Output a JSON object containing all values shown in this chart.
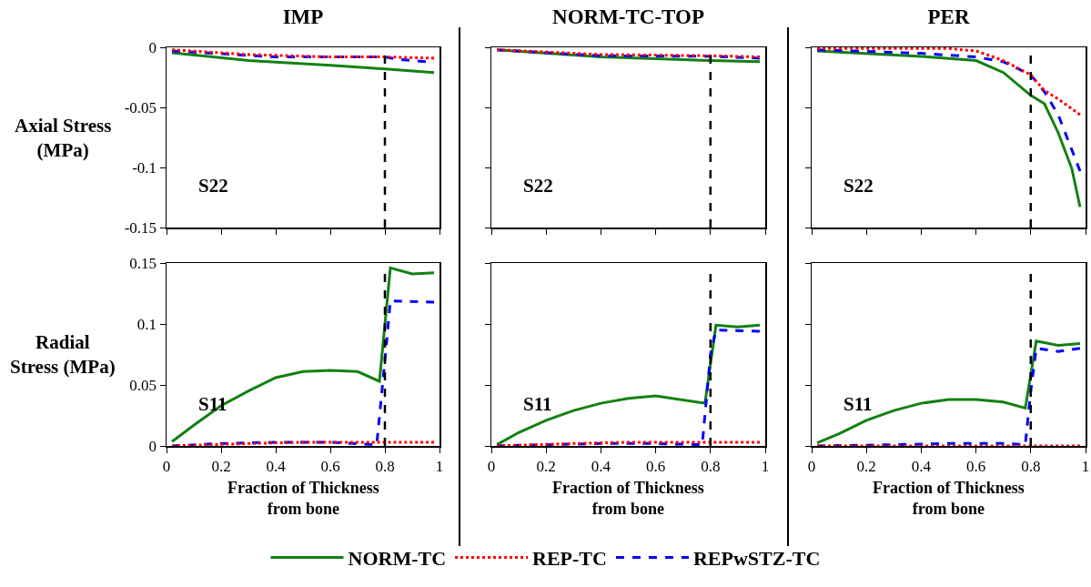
{
  "chart_data": [
    {
      "type": "line",
      "title": "IMP",
      "ylabel": "Axial Stress (MPa)",
      "annotations": [
        "S22"
      ],
      "xlim": [
        0,
        1
      ],
      "xticks": [
        0,
        0.2,
        0.4,
        0.6,
        0.8,
        1
      ],
      "ylim": [
        -0.15,
        0
      ],
      "yticks": [
        -0.15,
        -0.1,
        -0.05,
        0
      ],
      "tick_labels": "y",
      "ref_lines": [
        {
          "axis": "x",
          "value": 0.8,
          "color": "#000000",
          "line_style": "dashed"
        }
      ],
      "series": [
        {
          "color": "#138013",
          "line_style": "solid",
          "x": [
            0.02,
            0.3,
            0.6,
            0.8,
            0.98
          ],
          "values": [
            -0.0045,
            -0.011,
            -0.015,
            -0.018,
            -0.021
          ]
        },
        {
          "color": "#ff0000",
          "line_style": "dotted",
          "x": [
            0.02,
            0.3,
            0.6,
            0.8,
            0.98
          ],
          "values": [
            -0.002,
            -0.006,
            -0.008,
            -0.008,
            -0.009
          ]
        },
        {
          "color": "#0000ff",
          "line_style": "dashed",
          "x": [
            0.02,
            0.4,
            0.8,
            0.85,
            0.95
          ],
          "values": [
            -0.003,
            -0.008,
            -0.008,
            -0.01,
            -0.012
          ]
        }
      ]
    },
    {
      "type": "line",
      "title": "NORM-TC-TOP",
      "annotations": [
        "S22"
      ],
      "xlim": [
        0,
        1
      ],
      "xticks": [
        0,
        0.2,
        0.4,
        0.6,
        0.8,
        1
      ],
      "ylim": [
        -0.15,
        0
      ],
      "yticks": [
        -0.15,
        -0.1,
        -0.05,
        0
      ],
      "tick_labels": false,
      "ref_lines": [
        {
          "axis": "x",
          "value": 0.8,
          "color": "#000000",
          "line_style": "dashed"
        }
      ],
      "series": [
        {
          "color": "#138013",
          "line_style": "solid",
          "x": [
            0.02,
            0.4,
            0.8,
            0.98
          ],
          "values": [
            -0.002,
            -0.008,
            -0.011,
            -0.012
          ]
        },
        {
          "color": "#ff0000",
          "line_style": "dotted",
          "x": [
            0.02,
            0.4,
            0.8,
            0.98
          ],
          "values": [
            -0.002,
            -0.006,
            -0.007,
            -0.008
          ]
        },
        {
          "color": "#0000ff",
          "line_style": "dashed",
          "x": [
            0.02,
            0.4,
            0.8,
            0.98
          ],
          "values": [
            -0.002,
            -0.007,
            -0.0075,
            -0.009
          ]
        }
      ]
    },
    {
      "type": "line",
      "title": "PER",
      "annotations": [
        "S22"
      ],
      "xlim": [
        0,
        1
      ],
      "xticks": [
        0,
        0.2,
        0.4,
        0.6,
        0.8,
        1
      ],
      "ylim": [
        -0.15,
        0
      ],
      "yticks": [
        -0.15,
        -0.1,
        -0.05,
        0
      ],
      "tick_labels": false,
      "ref_lines": [
        {
          "axis": "x",
          "value": 0.8,
          "color": "#000000",
          "line_style": "dashed"
        }
      ],
      "series": [
        {
          "color": "#138013",
          "line_style": "solid",
          "x": [
            0.02,
            0.4,
            0.6,
            0.7,
            0.8,
            0.85,
            0.9,
            0.95,
            0.98
          ],
          "values": [
            -0.003,
            -0.0075,
            -0.011,
            -0.021,
            -0.04,
            -0.047,
            -0.071,
            -0.101,
            -0.133
          ]
        },
        {
          "color": "#ff0000",
          "line_style": "dotted",
          "x": [
            0.02,
            0.5,
            0.6,
            0.7,
            0.8,
            0.85,
            0.9,
            0.98
          ],
          "values": [
            -0.001,
            -0.001,
            -0.003,
            -0.011,
            -0.023,
            -0.036,
            -0.043,
            -0.056
          ]
        },
        {
          "color": "#0000ff",
          "line_style": "dashed",
          "x": [
            0.02,
            0.4,
            0.6,
            0.7,
            0.8,
            0.85,
            0.9,
            0.98
          ],
          "values": [
            -0.002,
            -0.005,
            -0.008,
            -0.012,
            -0.023,
            -0.037,
            -0.056,
            -0.103
          ]
        }
      ]
    },
    {
      "type": "line",
      "xlabel": "Fraction of Thickness from bone",
      "ylabel": "Radial Stress (MPa)",
      "annotations": [
        "S11"
      ],
      "xlim": [
        0,
        1
      ],
      "xticks": [
        0,
        0.2,
        0.4,
        0.6,
        0.8,
        1
      ],
      "ylim": [
        0,
        0.15
      ],
      "yticks": [
        0,
        0.05,
        0.1,
        0.15
      ],
      "ref_lines": [
        {
          "axis": "x",
          "value": 0.8,
          "color": "#000000",
          "line_style": "dashed"
        }
      ],
      "series": [
        {
          "color": "#138013",
          "line_style": "solid",
          "x": [
            0.02,
            0.1,
            0.2,
            0.3,
            0.4,
            0.5,
            0.6,
            0.7,
            0.78,
            0.82,
            0.9,
            0.98
          ],
          "values": [
            0.0035,
            0.017,
            0.033,
            0.045,
            0.056,
            0.061,
            0.062,
            0.061,
            0.053,
            0.146,
            0.141,
            0.142
          ]
        },
        {
          "color": "#ff0000",
          "line_style": "dotted",
          "x": [
            0.02,
            0.3,
            0.5,
            0.98
          ],
          "values": [
            0,
            0.002,
            0.003,
            0.003
          ]
        },
        {
          "color": "#0000ff",
          "line_style": "dashed",
          "x": [
            0.02,
            0.2,
            0.4,
            0.6,
            0.77,
            0.8,
            0.82,
            0.98
          ],
          "values": [
            0,
            0.002,
            0.003,
            0.003,
            0.001,
            0.07,
            0.119,
            0.118
          ]
        }
      ]
    },
    {
      "type": "line",
      "xlabel": "Fraction of Thickness from bone",
      "annotations": [
        "S11"
      ],
      "xlim": [
        0,
        1
      ],
      "xticks": [
        0,
        0.2,
        0.4,
        0.6,
        0.8,
        1
      ],
      "ylim": [
        0,
        0.15
      ],
      "yticks": [
        0,
        0.05,
        0.1,
        0.15
      ],
      "tick_labels": "x",
      "legend": "bottom",
      "ref_lines": [
        {
          "axis": "x",
          "value": 0.8,
          "color": "#000000",
          "line_style": "dashed"
        }
      ],
      "series": [
        {
          "name": "NORM-TC",
          "color": "#138013",
          "line_style": "solid",
          "x": [
            0.02,
            0.1,
            0.2,
            0.3,
            0.4,
            0.5,
            0.6,
            0.78,
            0.82,
            0.9,
            0.98
          ],
          "values": [
            0.001,
            0.011,
            0.021,
            0.029,
            0.035,
            0.039,
            0.041,
            0.035,
            0.099,
            0.0975,
            0.099
          ]
        },
        {
          "name": "REP-TC",
          "color": "#ff0000",
          "line_style": "dotted",
          "x": [
            0.02,
            0.3,
            0.5,
            0.98
          ],
          "values": [
            0,
            0.002,
            0.003,
            0.003
          ]
        },
        {
          "name": "REPwSTZ-TC",
          "color": "#0000ff",
          "line_style": "dashed",
          "x": [
            0.02,
            0.2,
            0.4,
            0.6,
            0.77,
            0.8,
            0.82,
            0.98
          ],
          "values": [
            0,
            0.001,
            0.002,
            0.002,
            0.001,
            0.075,
            0.095,
            0.094
          ]
        }
      ]
    },
    {
      "type": "line",
      "xlabel": "Fraction of Thickness from bone",
      "annotations": [
        "S11"
      ],
      "xlim": [
        0,
        1
      ],
      "xticks": [
        0,
        0.2,
        0.4,
        0.6,
        0.8,
        1
      ],
      "ylim": [
        0,
        0.15
      ],
      "yticks": [
        0,
        0.05,
        0.1,
        0.15
      ],
      "tick_labels": "x",
      "ref_lines": [
        {
          "axis": "x",
          "value": 0.8,
          "color": "#000000",
          "line_style": "dashed"
        }
      ],
      "series": [
        {
          "color": "#138013",
          "line_style": "solid",
          "x": [
            0.02,
            0.1,
            0.2,
            0.3,
            0.4,
            0.5,
            0.6,
            0.7,
            0.78,
            0.82,
            0.9,
            0.98
          ],
          "values": [
            0.0025,
            0.01,
            0.021,
            0.029,
            0.035,
            0.038,
            0.038,
            0.036,
            0.031,
            0.086,
            0.0825,
            0.084
          ]
        },
        {
          "color": "#ff0000",
          "line_style": "dotted",
          "x": [
            0.02,
            0.98
          ],
          "values": [
            0,
            0
          ]
        },
        {
          "color": "#0000ff",
          "line_style": "dashed",
          "x": [
            0.02,
            0.3,
            0.5,
            0.7,
            0.78,
            0.8,
            0.82,
            0.9,
            0.98
          ],
          "values": [
            0,
            0.001,
            0.002,
            0.002,
            0.001,
            0.045,
            0.08,
            0.0775,
            0.08
          ]
        }
      ]
    }
  ]
}
